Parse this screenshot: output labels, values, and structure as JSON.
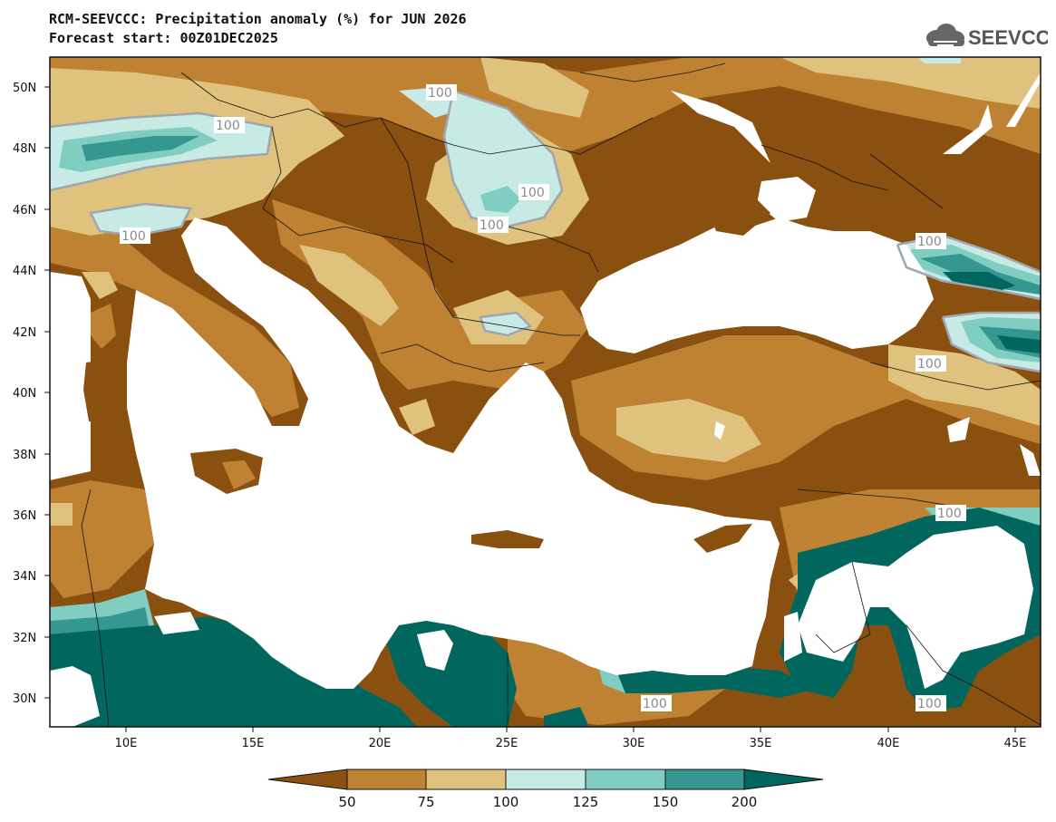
{
  "title": {
    "line1": "RCM-SEEVCCC: Precipitation anomaly (%) for JUN 2026",
    "line2": "Forecast start: 00Z01DEC2025"
  },
  "logo": {
    "text": "SEEVCCC",
    "icon": "cloud-icon"
  },
  "map": {
    "lat_labels": [
      "50N",
      "48N",
      "46N",
      "44N",
      "42N",
      "40N",
      "38N",
      "36N",
      "34N",
      "32N",
      "30N"
    ],
    "lon_labels": [
      "10E",
      "15E",
      "20E",
      "25E",
      "30E",
      "35E",
      "40E",
      "45E"
    ],
    "contour_labels": [
      "100",
      "100",
      "100",
      "100",
      "100",
      "100",
      "100",
      "100",
      "100",
      "100"
    ]
  },
  "colorbar": {
    "ticks": [
      "50",
      "75",
      "100",
      "125",
      "150",
      "200"
    ],
    "colors": {
      "lt50": "#8a5010",
      "c50_75": "#bf8132",
      "c75_100": "#dfc27d",
      "c100_125": "#c7eae5",
      "c125_150": "#80cdc1",
      "c150_200": "#35978f",
      "gt200": "#01665e"
    }
  }
}
